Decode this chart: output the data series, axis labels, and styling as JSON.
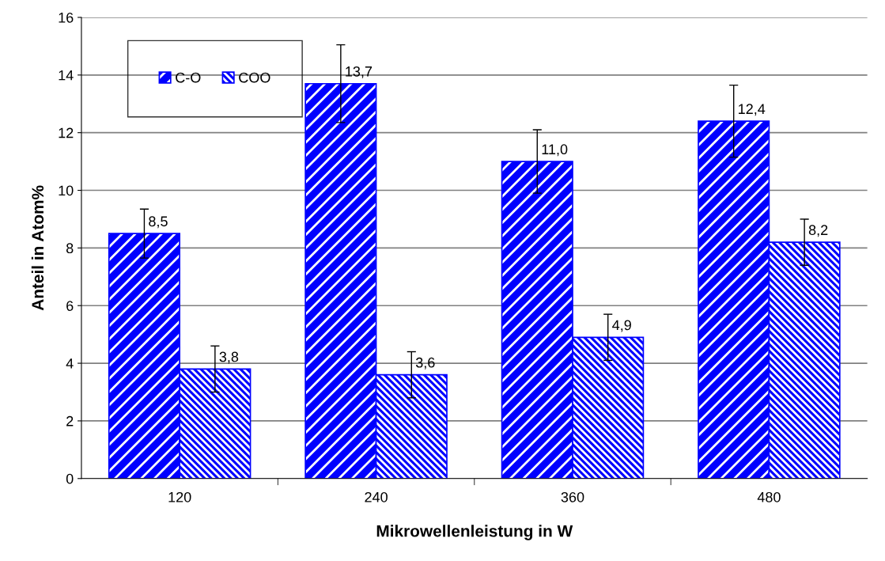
{
  "chart_data": {
    "type": "bar",
    "xlabel": "Mikrowellenleistung in W",
    "ylabel": "Anteil in Atom%",
    "categories": [
      "120",
      "240",
      "360",
      "480"
    ],
    "series": [
      {
        "name": "C-O",
        "color": "#0000ff",
        "values": [
          8.5,
          13.7,
          11.0,
          12.4
        ],
        "errors": [
          0.85,
          1.35,
          1.1,
          1.25
        ],
        "value_labels": [
          "8,5",
          "13,7",
          "11,0",
          "12,4"
        ]
      },
      {
        "name": "COO",
        "color": "#0000ff",
        "values": [
          3.8,
          3.6,
          4.9,
          8.2
        ],
        "errors": [
          0.8,
          0.8,
          0.8,
          0.8
        ],
        "value_labels": [
          "3,8",
          "3,6",
          "4,9",
          "8,2"
        ]
      }
    ],
    "ylim": [
      0,
      16
    ],
    "yticks": [
      0,
      2,
      4,
      6,
      8,
      10,
      12,
      14,
      16
    ],
    "grid": "y",
    "legend": "top left"
  }
}
